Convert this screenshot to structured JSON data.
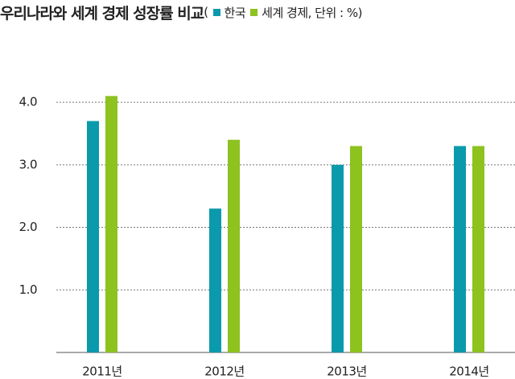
{
  "chart_data": {
    "type": "bar",
    "title": "우리나라와 세계 경제 성장률 비교",
    "legend_prefix": "(",
    "unit_note": ", 단위 : %)",
    "categories": [
      "2011년",
      "2012년",
      "2013년",
      "2014년"
    ],
    "series": [
      {
        "name": "한국",
        "color": "#0a9aab",
        "values": [
          3.7,
          2.3,
          3.0,
          3.3
        ]
      },
      {
        "name": "세계 경제",
        "color": "#8dc21f",
        "values": [
          4.1,
          3.4,
          3.3,
          3.3
        ]
      }
    ],
    "ylim": [
      0,
      4.4
    ],
    "yticks": [
      {
        "value": 1,
        "label": "1.0"
      },
      {
        "value": 2,
        "label": "2.0"
      },
      {
        "value": 3,
        "label": "3.0"
      },
      {
        "value": 4,
        "label": "4.0"
      }
    ],
    "grid": true
  }
}
